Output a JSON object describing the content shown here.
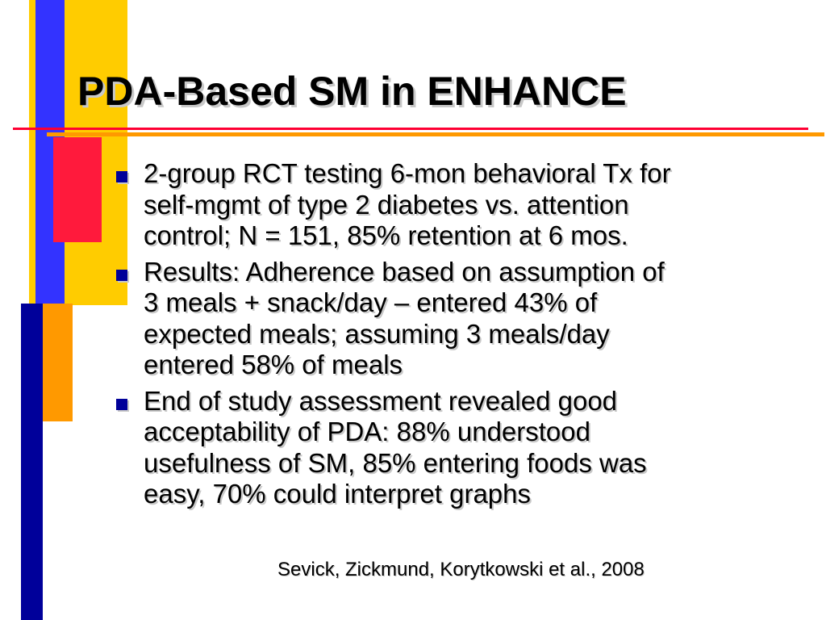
{
  "slide": {
    "title": "PDA-Based SM in ENHANCE",
    "bullets": [
      {
        "lines": [
          "2-group RCT testing 6-mon behavioral Tx for",
          "self-mgmt of type 2 diabetes vs. attention",
          "control; N = 151, 85% retention at 6 mos."
        ]
      },
      {
        "lines": [
          "Results:  Adherence based on assumption of",
          "3 meals + snack/day – entered 43% of",
          "expected meals; assuming 3 meals/day",
          "entered 58% of meals"
        ]
      },
      {
        "lines": [
          "End of study assessment revealed good",
          "acceptability of PDA: 88% understood",
          "usefulness of SM, 85% entering foods was",
          "easy, 70% could interpret graphs"
        ]
      }
    ],
    "citation": "Sevick, Zickmund, Korytkowski et al., 2008"
  },
  "colors": {
    "bullet_marker": "#000099",
    "title_rule": "#ff0033",
    "accent_rule": "#ff9900",
    "bar_yellow": "#ffcc00",
    "bar_blue": "#3333ff",
    "bar_navy": "#00009a",
    "bar_red": "#ff1a3c",
    "bar_orange": "#ff9900"
  }
}
